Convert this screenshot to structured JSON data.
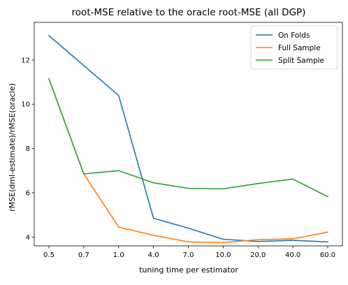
{
  "chart_data": {
    "type": "line",
    "title": "root-MSE relative to the oracle root-MSE (all DGP)",
    "xlabel": "tuning time per estimator",
    "ylabel": "rMSE(dml-estimate)/rMSE(oracle)",
    "categories": [
      "0.5",
      "0.7",
      "1.0",
      "4.0",
      "7.0",
      "10.0",
      "20.0",
      "40.0",
      "60.0"
    ],
    "ylim": [
      3.6,
      13.7
    ],
    "yticks": [
      4,
      6,
      8,
      10,
      12
    ],
    "grid": false,
    "legend_position": "top-right",
    "series": [
      {
        "name": "On Folds",
        "color": "#1f77b4",
        "values": [
          13.1,
          11.75,
          10.4,
          4.85,
          4.4,
          3.9,
          3.8,
          3.85,
          3.78
        ]
      },
      {
        "name": "Full Sample",
        "color": "#ff7f0e",
        "values": [
          11.15,
          6.85,
          4.45,
          4.08,
          3.78,
          3.75,
          3.88,
          3.92,
          4.22
        ]
      },
      {
        "name": "Split Sample",
        "color": "#2ca02c",
        "values": [
          11.15,
          6.85,
          7.0,
          6.45,
          6.2,
          6.18,
          6.42,
          6.62,
          5.82
        ]
      }
    ]
  }
}
